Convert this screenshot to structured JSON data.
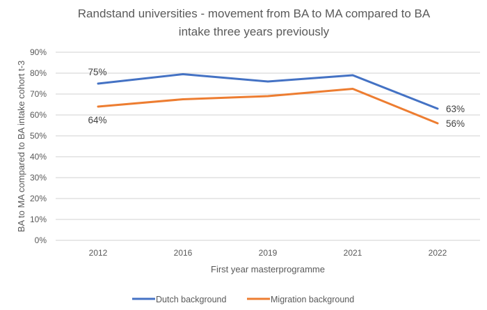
{
  "chart_data": {
    "type": "line",
    "title": [
      "Randstand universities - movement from BA to MA compared to BA",
      "intake three years previously"
    ],
    "xlabel": "First year masterprogramme",
    "ylabel": "BA to MA compared to BA intake cohort t-3",
    "categories": [
      "2012",
      "2016",
      "2019",
      "2021",
      "2022"
    ],
    "ylim": [
      0,
      90
    ],
    "yticks": [
      0,
      10,
      20,
      30,
      40,
      50,
      60,
      70,
      80,
      90
    ],
    "ytick_labels": [
      "0%",
      "10%",
      "20%",
      "30%",
      "40%",
      "50%",
      "60%",
      "70%",
      "80%",
      "90%"
    ],
    "grid": true,
    "legend_position": "bottom",
    "series": [
      {
        "name": "Dutch background",
        "color": "#4472C4",
        "values": [
          75,
          79.5,
          76,
          79,
          63
        ],
        "data_labels": {
          "0": "75%",
          "4": "63%"
        }
      },
      {
        "name": "Migration background",
        "color": "#ED7D31",
        "values": [
          64,
          67.5,
          69,
          72.5,
          56
        ],
        "data_labels": {
          "0": "64%",
          "4": "56%"
        }
      }
    ]
  }
}
